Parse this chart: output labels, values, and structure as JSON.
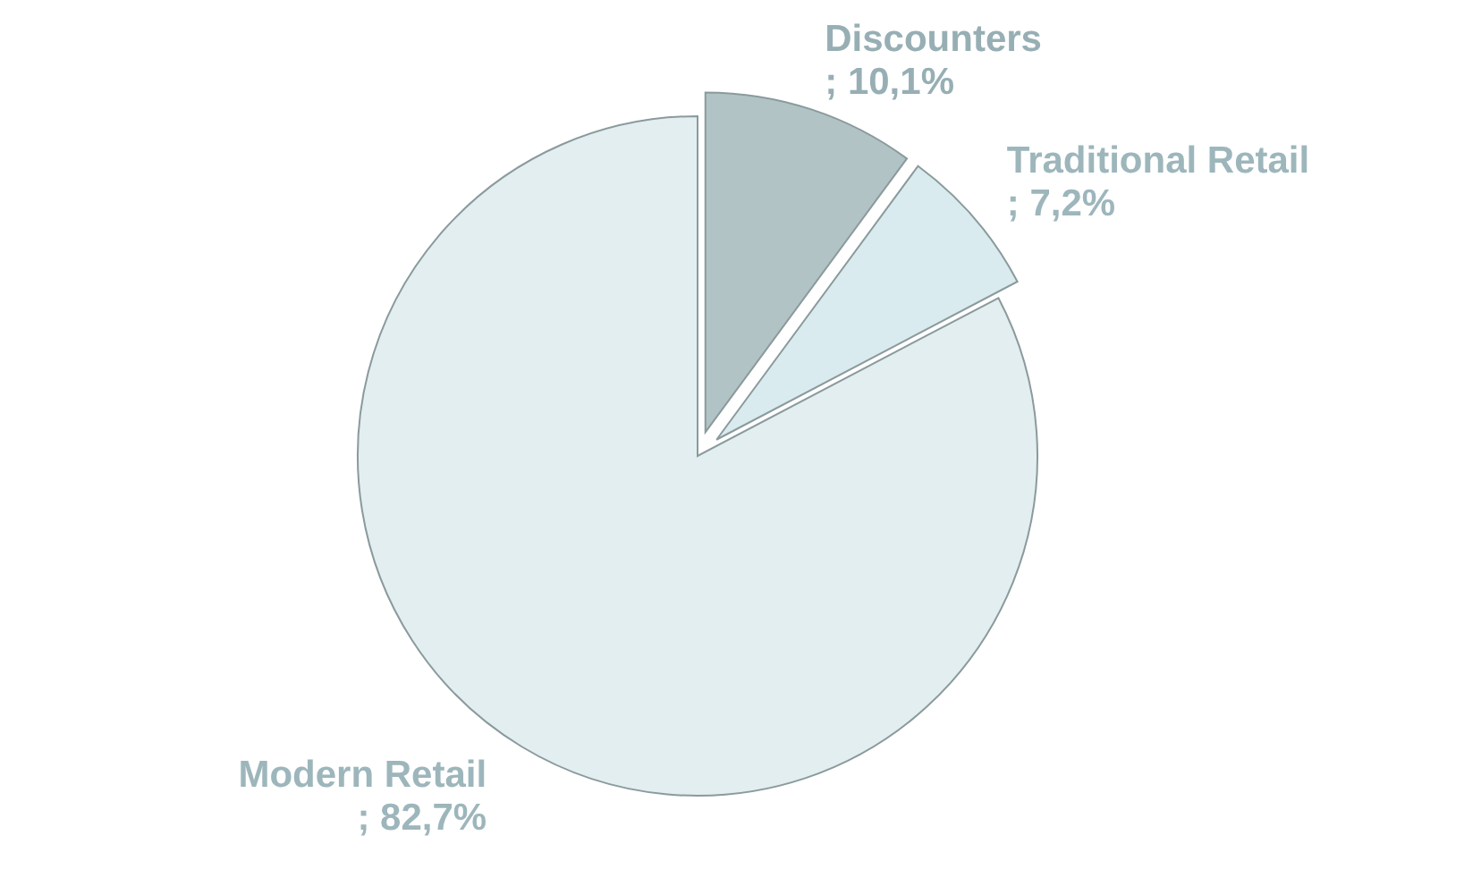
{
  "chart_data": {
    "type": "pie",
    "categories": [
      "Discounters",
      "Traditional Retail",
      "Modern Retail"
    ],
    "values": [
      10.1,
      7.2,
      82.7
    ],
    "value_labels": [
      "; 10,1%",
      "; 7,2%",
      "; 82,7%"
    ],
    "colors": [
      "#b2c3c6",
      "#d9ebee",
      "#e3eef0"
    ]
  }
}
